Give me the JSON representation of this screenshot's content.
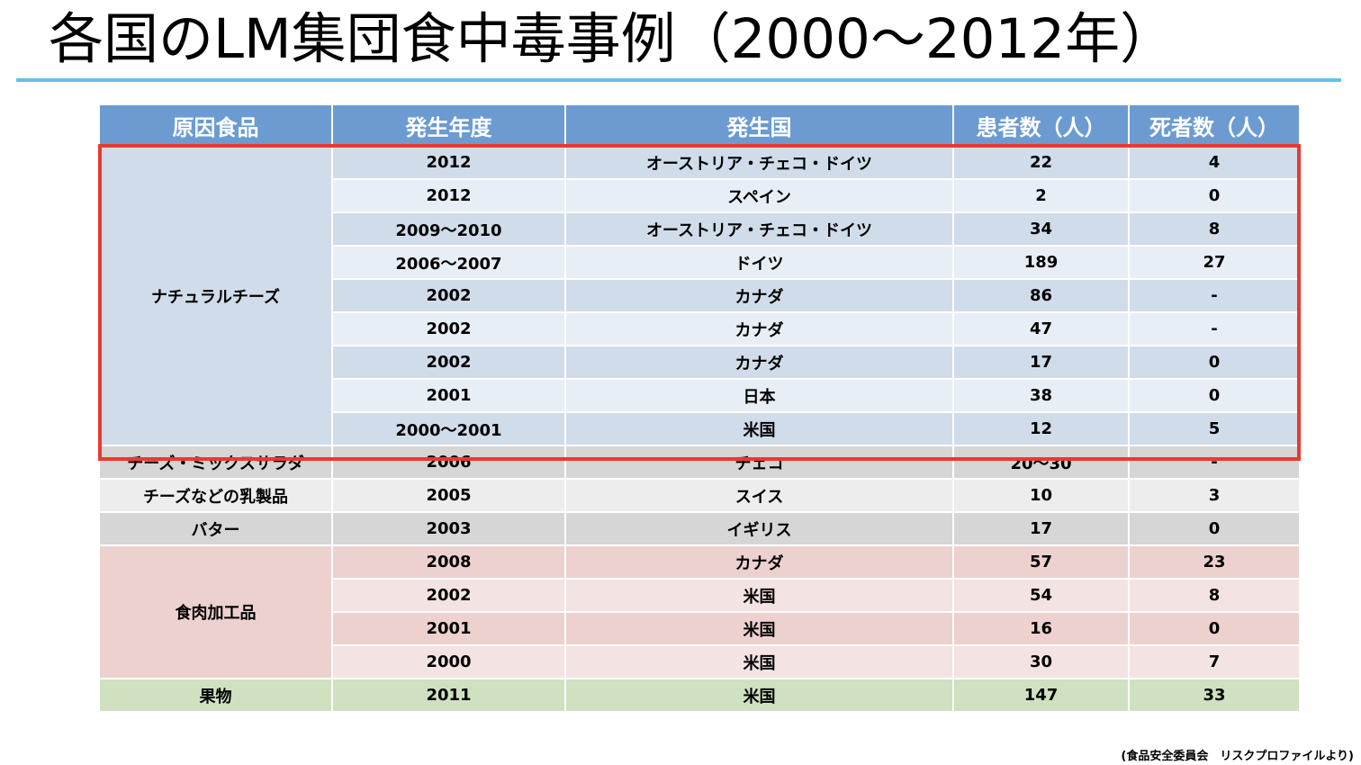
{
  "title": "各国のLM集団食中毒事例（2000～2012年）",
  "table": {
    "headers": [
      "原因食品",
      "発生年度",
      "発生国",
      "患者数（人）",
      "死者数（人）"
    ],
    "natural_cheese": {
      "label": "ナチュラルチーズ",
      "rows": [
        [
          "2012",
          "オーストリア・チェコ・ドイツ",
          "22",
          "4"
        ],
        [
          "2012",
          "スペイン",
          "2",
          "0"
        ],
        [
          "2009～2010",
          "オーストリア・チェコ・ドイツ",
          "34",
          "8"
        ],
        [
          "2006～2007",
          "ドイツ",
          "189",
          "27"
        ],
        [
          "2002",
          "カナダ",
          "86",
          "-"
        ],
        [
          "2002",
          "カナダ",
          "47",
          "-"
        ],
        [
          "2002",
          "カナダ",
          "17",
          "0"
        ],
        [
          "2001",
          "日本",
          "38",
          "0"
        ],
        [
          "2000～2001",
          "米国",
          "12",
          "5"
        ]
      ]
    },
    "other_dairy": [
      [
        "チーズ・ミックスサラダ",
        "2006",
        "チェコ",
        "20～30",
        "-"
      ],
      [
        "チーズなどの乳製品",
        "2005",
        "スイス",
        "10",
        "3"
      ],
      [
        "バター",
        "2003",
        "イギリス",
        "17",
        "0"
      ]
    ],
    "processed_meat": {
      "label": "食肉加工品",
      "rows": [
        [
          "2008",
          "カナダ",
          "57",
          "23"
        ],
        [
          "2002",
          "米国",
          "54",
          "8"
        ],
        [
          "2001",
          "米国",
          "16",
          "0"
        ],
        [
          "2000",
          "米国",
          "30",
          "7"
        ]
      ]
    },
    "fruit": [
      "果物",
      "2011",
      "米国",
      "147",
      "33"
    ]
  },
  "source": "(食品安全委員会　リスクプロファイルより)",
  "colors": {
    "header": "#6c9bd2",
    "cheese": "#d1dcea",
    "gray": "#d6d6d6",
    "meat": "#ecd1cf",
    "fruit": "#cfe1c0",
    "highlight": "#e43c2f",
    "title_rule": "#5bc4ec"
  }
}
